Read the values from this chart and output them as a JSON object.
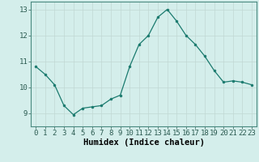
{
  "x": [
    0,
    1,
    2,
    3,
    4,
    5,
    6,
    7,
    8,
    9,
    10,
    11,
    12,
    13,
    14,
    15,
    16,
    17,
    18,
    19,
    20,
    21,
    22,
    23
  ],
  "y": [
    10.8,
    10.5,
    10.1,
    9.3,
    8.95,
    9.2,
    9.25,
    9.3,
    9.55,
    9.7,
    10.8,
    11.65,
    12.0,
    12.7,
    13.0,
    12.55,
    12.0,
    11.65,
    11.2,
    10.65,
    10.2,
    10.25,
    10.2,
    10.1
  ],
  "line_color": "#1a7a6e",
  "marker_color": "#1a7a6e",
  "bg_color": "#d4eeeb",
  "grid_color": "#c0d8d4",
  "xlabel": "Humidex (Indice chaleur)",
  "ylim": [
    8.5,
    13.3
  ],
  "xlim": [
    -0.5,
    23.5
  ],
  "yticks": [
    9,
    10,
    11,
    12,
    13
  ],
  "xticks": [
    0,
    1,
    2,
    3,
    4,
    5,
    6,
    7,
    8,
    9,
    10,
    11,
    12,
    13,
    14,
    15,
    16,
    17,
    18,
    19,
    20,
    21,
    22,
    23
  ],
  "tick_fontsize": 6.5,
  "xlabel_fontsize": 7.5,
  "xlabel_fontweight": "bold"
}
